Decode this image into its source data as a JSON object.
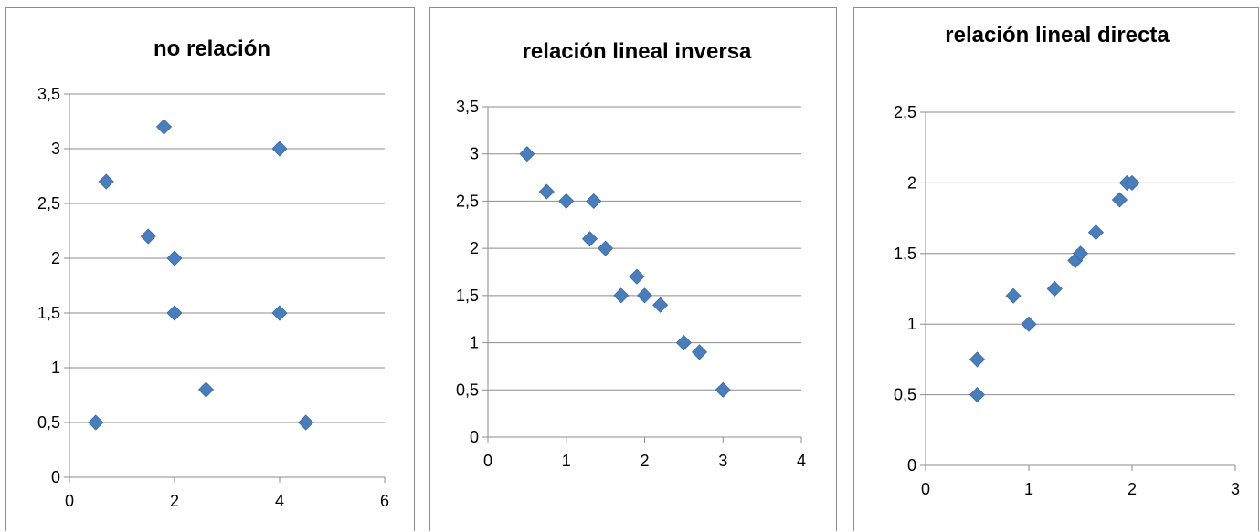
{
  "chart_data": [
    {
      "type": "scatter",
      "title": "no relación",
      "xlim": [
        0,
        6
      ],
      "ylim": [
        0,
        3.5
      ],
      "xticks": [
        "0",
        "2",
        "4",
        "6"
      ],
      "yticks": [
        "0",
        "0,5",
        "1",
        "1,5",
        "2",
        "2,5",
        "3",
        "3,5"
      ],
      "grid": "horizontal",
      "marker_color": "#4a7ebb",
      "points": [
        {
          "x": 0.5,
          "y": 0.5
        },
        {
          "x": 0.7,
          "y": 2.7
        },
        {
          "x": 1.5,
          "y": 2.2
        },
        {
          "x": 1.8,
          "y": 3.2
        },
        {
          "x": 2.0,
          "y": 2.0
        },
        {
          "x": 2.0,
          "y": 1.5
        },
        {
          "x": 2.6,
          "y": 0.8
        },
        {
          "x": 4.0,
          "y": 3.0
        },
        {
          "x": 4.0,
          "y": 1.5
        },
        {
          "x": 4.5,
          "y": 0.5
        }
      ]
    },
    {
      "type": "scatter",
      "title": "relación lineal inversa",
      "xlim": [
        0,
        4
      ],
      "ylim": [
        0,
        3.5
      ],
      "xticks": [
        "0",
        "1",
        "2",
        "3",
        "4"
      ],
      "yticks": [
        "0",
        "0,5",
        "1",
        "1,5",
        "2",
        "2,5",
        "3",
        "3,5"
      ],
      "grid": "horizontal",
      "marker_color": "#4a7ebb",
      "points": [
        {
          "x": 0.5,
          "y": 3.0
        },
        {
          "x": 0.75,
          "y": 2.6
        },
        {
          "x": 1.0,
          "y": 2.5
        },
        {
          "x": 1.35,
          "y": 2.5
        },
        {
          "x": 1.3,
          "y": 2.1
        },
        {
          "x": 1.5,
          "y": 2.0
        },
        {
          "x": 1.9,
          "y": 1.7
        },
        {
          "x": 1.7,
          "y": 1.5
        },
        {
          "x": 2.0,
          "y": 1.5
        },
        {
          "x": 2.2,
          "y": 1.4
        },
        {
          "x": 2.5,
          "y": 1.0
        },
        {
          "x": 2.7,
          "y": 0.9
        },
        {
          "x": 3.0,
          "y": 0.5
        }
      ]
    },
    {
      "type": "scatter",
      "title": "relación lineal directa",
      "xlim": [
        0,
        3
      ],
      "ylim": [
        0,
        2.5
      ],
      "xticks": [
        "0",
        "1",
        "2",
        "3"
      ],
      "yticks": [
        "0",
        "0,5",
        "1",
        "1,5",
        "2",
        "2,5"
      ],
      "grid": "horizontal",
      "marker_color": "#4a7ebb",
      "points": [
        {
          "x": 0.5,
          "y": 0.5
        },
        {
          "x": 0.5,
          "y": 0.75
        },
        {
          "x": 0.85,
          "y": 1.2
        },
        {
          "x": 1.0,
          "y": 1.0
        },
        {
          "x": 1.25,
          "y": 1.25
        },
        {
          "x": 1.45,
          "y": 1.45
        },
        {
          "x": 1.5,
          "y": 1.5
        },
        {
          "x": 1.65,
          "y": 1.65
        },
        {
          "x": 1.88,
          "y": 1.88
        },
        {
          "x": 1.95,
          "y": 2.0
        },
        {
          "x": 2.0,
          "y": 2.0
        }
      ]
    }
  ]
}
